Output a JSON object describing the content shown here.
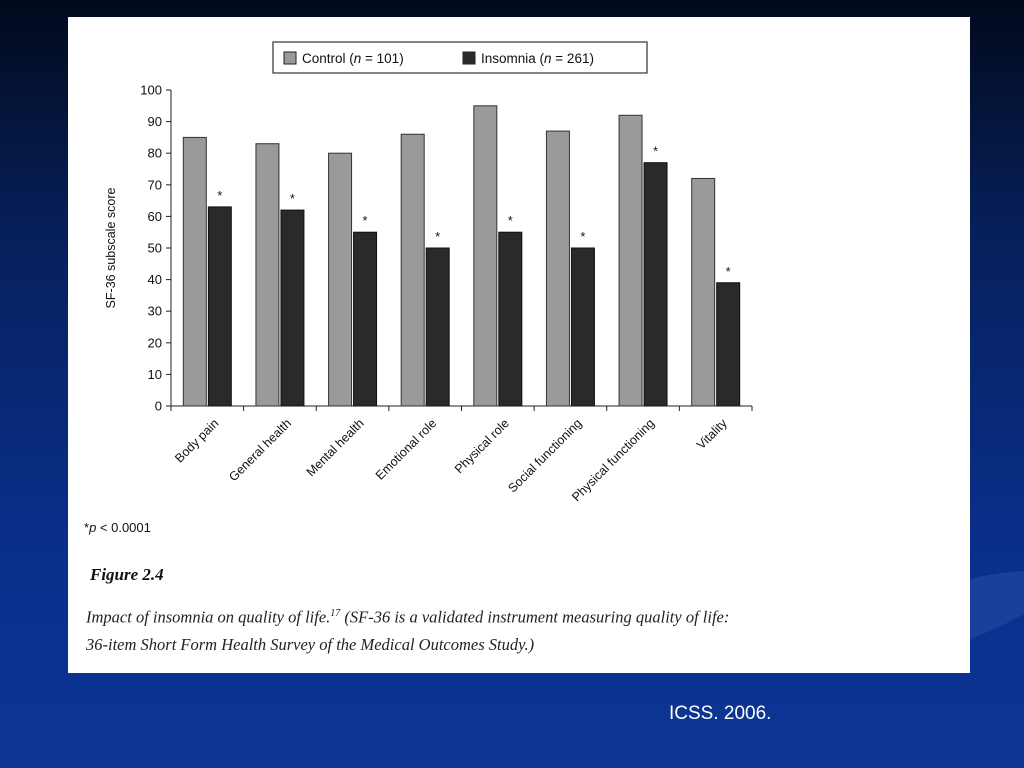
{
  "slide": {
    "citation": "ICSS. 2006."
  },
  "figure": {
    "footnote_marker": "*",
    "footnote_p": "p",
    "footnote_rest": " < 0.0001",
    "label": "Figure 2.4",
    "caption_line1": "Impact of insomnia on quality of life.",
    "caption_ref": "17",
    "caption_line1_rest": " (SF-36 is a validated instrument measuring quality of life:",
    "caption_line2": "36-item Short Form Health Survey of the Medical Outcomes Study.)"
  },
  "chart_data": {
    "type": "bar",
    "title": "",
    "xlabel": "",
    "ylabel": "SF-36 subscale score",
    "ylim": [
      0,
      100
    ],
    "yticks": [
      0,
      10,
      20,
      30,
      40,
      50,
      60,
      70,
      80,
      90,
      100
    ],
    "grid": false,
    "legend_placement": "top-center",
    "categories": [
      "Body pain",
      "General health",
      "Mental health",
      "Emotional role",
      "Physical role",
      "Social functioning",
      "Physical functioning",
      "Vitality"
    ],
    "series": [
      {
        "name": "Control (n = 101)",
        "legend_prefix": "Control (",
        "legend_italic": "n",
        "legend_suffix": " = 101)",
        "color": "#9a9a9a",
        "values": [
          85,
          83,
          80,
          86,
          95,
          87,
          92,
          72
        ]
      },
      {
        "name": "Insomnia (n = 261)",
        "legend_prefix": "Insomnia (",
        "legend_italic": "n",
        "legend_suffix": " = 261)",
        "color": "#2a2a2a",
        "values": [
          63,
          62,
          55,
          50,
          55,
          50,
          77,
          39
        ]
      }
    ],
    "significance_marker": "*",
    "significant": [
      true,
      true,
      true,
      true,
      true,
      true,
      true,
      true
    ]
  }
}
